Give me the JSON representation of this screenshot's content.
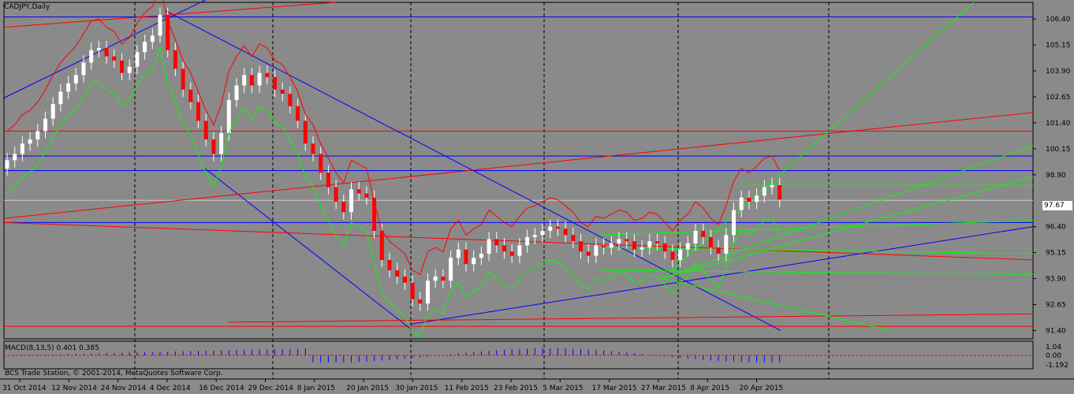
{
  "symbol": "CADJPY,Daily",
  "macd_label": "MACD(8,13,5) 0.401 0.385",
  "copyright": "BCS Trade Station, © 2001-2014, MetaQuotes Software Corp.",
  "current_price": "97.67",
  "colors": {
    "background": "#8a8a8a",
    "bull_candle": "#ffffff",
    "bear_candle": "#ff0000",
    "trendline_blue": "#0000ff",
    "trendline_red": "#ff0000",
    "fan_green": "#00ff00",
    "grid": "#000000"
  },
  "chart_data": {
    "type": "candlestick",
    "price_axis_ticks": [
      "106.40",
      "105.15",
      "103.90",
      "102.65",
      "101.40",
      "100.15",
      "98.90",
      "97.67",
      "96.40",
      "95.15",
      "93.90",
      "92.65",
      "91.40"
    ],
    "macd_axis_ticks": [
      "1.04",
      "0.00",
      "-1.192"
    ],
    "time_axis_ticks": [
      "31 Oct 2014",
      "12 Nov 2014",
      "24 Nov 2014",
      "4 Dec 2014",
      "16 Dec 2014",
      "29 Dec 2014",
      "8 Jan 2015",
      "20 Jan 2015",
      "30 Jan 2015",
      "11 Feb 2015",
      "23 Feb 2015",
      "5 Mar 2015",
      "17 Mar 2015",
      "27 Mar 2015",
      "8 Apr 2015",
      "20 Apr 2015"
    ],
    "ylim": [
      91.0,
      107.2
    ],
    "close_series": [
      99.6,
      99.9,
      100.4,
      100.6,
      101.0,
      101.6,
      102.3,
      102.9,
      103.3,
      103.7,
      104.3,
      104.9,
      105.0,
      104.6,
      104.4,
      103.8,
      104.1,
      104.8,
      105.3,
      105.6,
      106.6,
      104.9,
      104.0,
      103.0,
      102.4,
      101.5,
      100.6,
      99.9,
      100.9,
      102.5,
      103.2,
      103.7,
      103.2,
      103.8,
      103.6,
      103.0,
      102.8,
      102.2,
      101.5,
      100.4,
      99.9,
      99.0,
      98.3,
      97.6,
      97.1,
      98.2,
      98.0,
      97.8,
      96.2,
      94.8,
      94.3,
      94.0,
      93.7,
      92.9,
      92.7,
      93.8,
      94.0,
      93.8,
      94.9,
      95.3,
      94.6,
      94.9,
      95.1,
      95.8,
      95.5,
      95.2,
      95.0,
      95.5,
      95.9,
      96.0,
      96.2,
      96.4,
      96.3,
      96.0,
      95.7,
      95.2,
      95.0,
      95.5,
      95.4,
      95.6,
      95.8,
      95.7,
      95.3,
      95.4,
      95.7,
      95.6,
      95.2,
      94.8,
      95.3,
      95.6,
      96.2,
      95.9,
      95.4,
      95.1,
      96.0,
      97.2,
      97.8,
      97.6,
      97.9,
      98.3,
      98.4,
      97.7
    ]
  }
}
